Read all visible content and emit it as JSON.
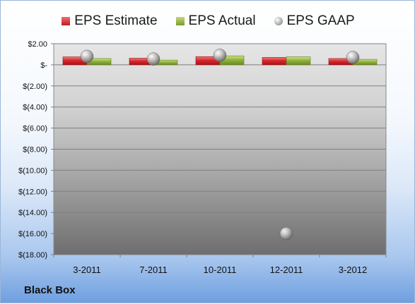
{
  "company": "Black Box",
  "legend": [
    {
      "name": "EPS Estimate",
      "color": "#d7262a",
      "shape": "bar"
    },
    {
      "name": "EPS Actual",
      "color": "#8fb33a",
      "shape": "bar"
    },
    {
      "name": "EPS GAAP",
      "color": "#b7b7b7",
      "shape": "sphere"
    }
  ],
  "chart_data": {
    "type": "bar",
    "categories": [
      "3-2011",
      "7-2011",
      "10-2011",
      "12-2011",
      "3-2012"
    ],
    "series": [
      {
        "name": "EPS Estimate",
        "type": "bar",
        "values": [
          0.75,
          0.63,
          0.78,
          0.7,
          0.6
        ]
      },
      {
        "name": "EPS Actual",
        "type": "bar",
        "values": [
          0.6,
          0.45,
          0.85,
          0.76,
          0.52
        ]
      },
      {
        "name": "EPS GAAP",
        "type": "scatter",
        "values": [
          0.8,
          0.55,
          0.9,
          -16.0,
          0.7
        ]
      }
    ],
    "ylim": [
      -18,
      2
    ],
    "yticks": [
      2,
      0,
      -2,
      -4,
      -6,
      -8,
      -10,
      -12,
      -14,
      -16,
      -18
    ],
    "ytick_labels": [
      "$2.00",
      "$-",
      "$(2.00)",
      "$(4.00)",
      "$(6.00)",
      "$(8.00)",
      "$(10.00)",
      "$(12.00)",
      "$(14.00)",
      "$(16.00)",
      "$(18.00)"
    ],
    "grid": true,
    "legend_position": "top",
    "xlabel": "",
    "ylabel": ""
  }
}
